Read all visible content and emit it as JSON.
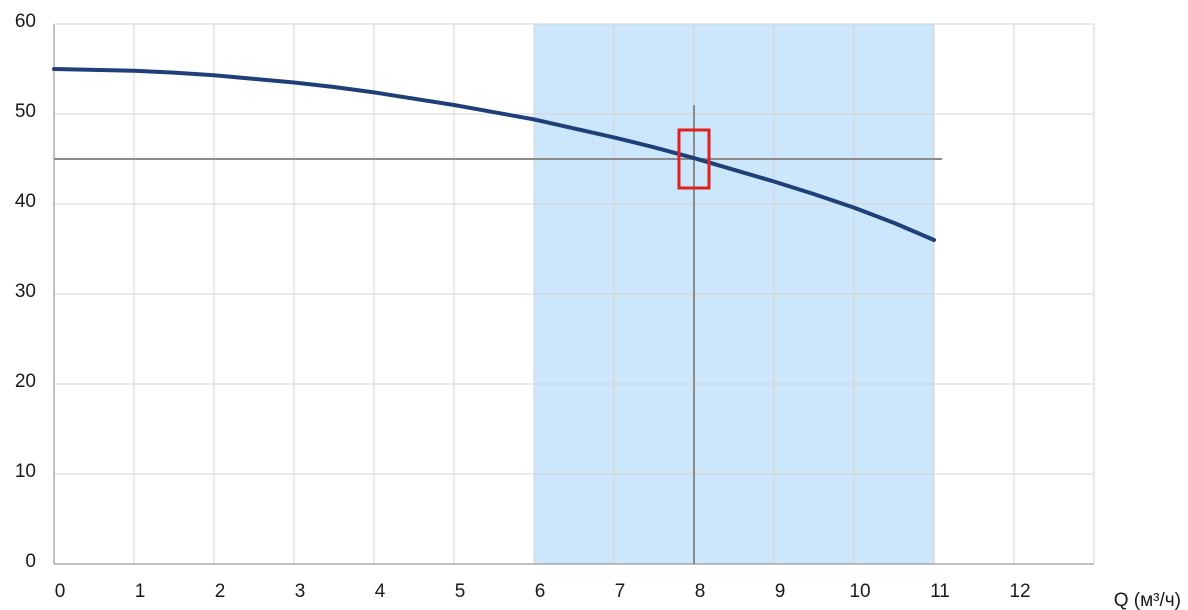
{
  "chart_data": {
    "type": "line",
    "title": "",
    "xlabel": "Q (м³/ч)",
    "ylabel": "",
    "xlim": [
      0,
      13
    ],
    "ylim": [
      0,
      60
    ],
    "x_ticks": [
      0,
      1,
      2,
      3,
      4,
      5,
      6,
      7,
      8,
      9,
      10,
      11,
      12
    ],
    "y_ticks": [
      0,
      10,
      20,
      30,
      40,
      50,
      60
    ],
    "grid": true,
    "legend": "none",
    "series": [
      {
        "color": "#1f3f7a",
        "x": [
          0,
          0.5,
          1,
          1.5,
          2,
          2.5,
          3,
          3.5,
          4,
          4.5,
          5,
          5.5,
          6,
          6.5,
          7,
          7.5,
          8,
          8.5,
          9,
          9.5,
          10,
          10.5,
          11
        ],
        "y": [
          55.0,
          54.9,
          54.8,
          54.6,
          54.3,
          53.9,
          53.5,
          53.0,
          52.4,
          51.7,
          51.0,
          50.2,
          49.4,
          48.4,
          47.4,
          46.3,
          45.1,
          43.8,
          42.5,
          41.1,
          39.6,
          37.9,
          36.0
        ]
      }
    ],
    "highlight_band": {
      "x_start": 6,
      "x_end": 11,
      "color": "#cce6fb"
    },
    "reference_lines": {
      "horizontal": {
        "y": 45,
        "x_start": 0,
        "x_end": 11.1,
        "color": "#8c8c8c"
      },
      "vertical": {
        "x": 8,
        "y_start": 0,
        "y_end": 51,
        "color": "#8c8c8c"
      }
    },
    "operating_point": {
      "x": 8,
      "y": 45,
      "color": "#e02020"
    }
  }
}
